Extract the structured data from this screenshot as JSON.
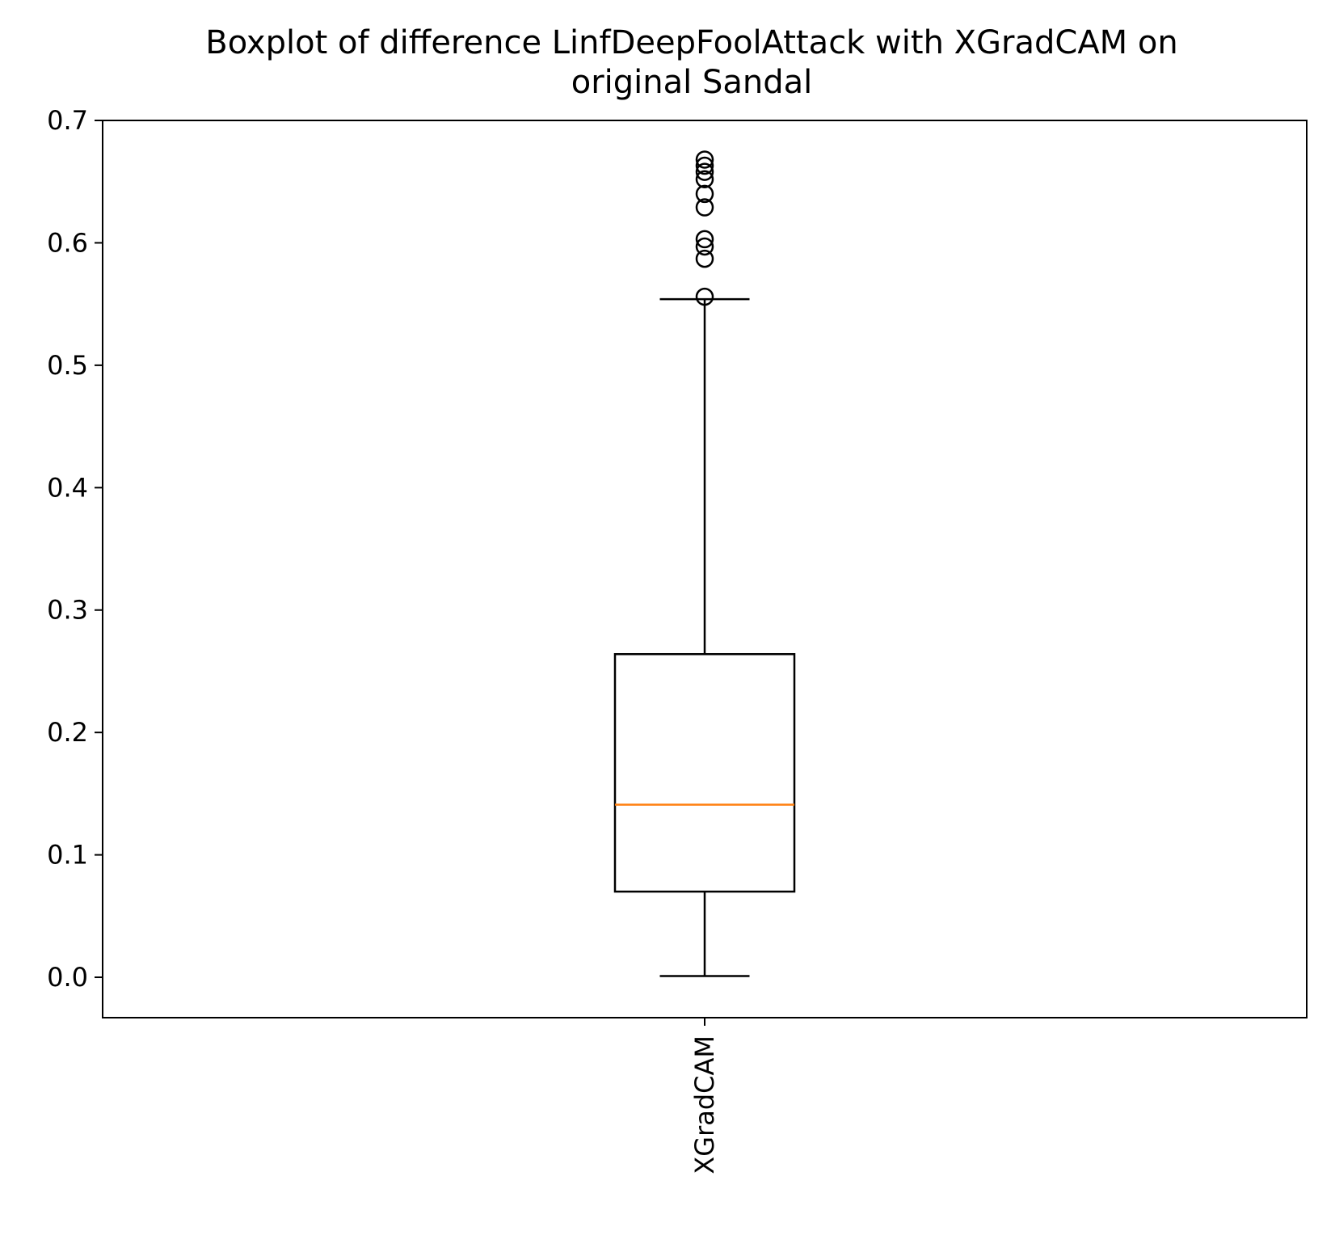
{
  "chart_data": {
    "type": "boxplot",
    "title_line1": "Boxplot of difference LinfDeepFoolAttack with XGradCAM on",
    "title_line2": "original Sandal",
    "xlabel": "",
    "ylabel": "",
    "categories": [
      "XGradCAM"
    ],
    "ylim": [
      -0.033,
      0.7
    ],
    "yticks": [
      0.0,
      0.1,
      0.2,
      0.3,
      0.4,
      0.5,
      0.6,
      0.7
    ],
    "ytick_labels": [
      "0.0",
      "0.1",
      "0.2",
      "0.3",
      "0.4",
      "0.5",
      "0.6",
      "0.7"
    ],
    "grid": false,
    "boxes": [
      {
        "category": "XGradCAM",
        "whisker_low": 0.001,
        "q1": 0.07,
        "median": 0.141,
        "q3": 0.264,
        "whisker_high": 0.554,
        "outliers": [
          0.556,
          0.587,
          0.597,
          0.603,
          0.629,
          0.64,
          0.652,
          0.658,
          0.663,
          0.668
        ]
      }
    ],
    "colors": {
      "box": "#000000",
      "median": "#ff7f0e",
      "outlier": "#000000"
    }
  }
}
